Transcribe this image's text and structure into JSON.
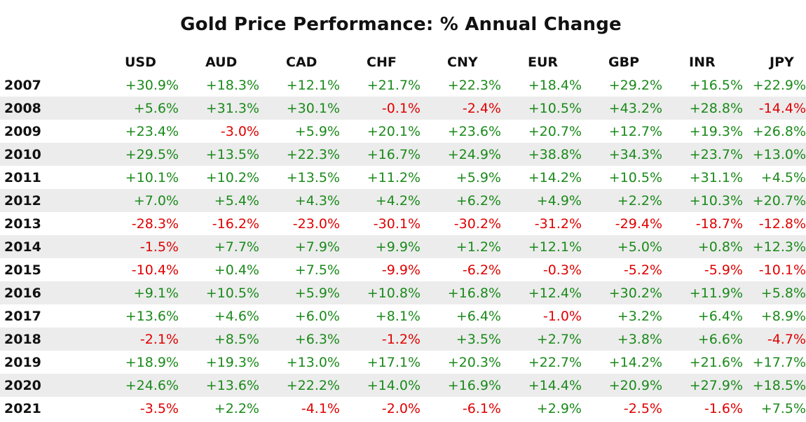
{
  "chart_data": {
    "type": "table",
    "title": "Gold Price Performance: % Annual Change",
    "columns": [
      "USD",
      "AUD",
      "CAD",
      "CHF",
      "CNY",
      "EUR",
      "GBP",
      "INR",
      "JPY"
    ],
    "colors": {
      "positive": "#1a8a1a",
      "negative": "#e00000",
      "shaded_row": "#ececec"
    },
    "rows": [
      {
        "year": "2007",
        "values": [
          "+30.9%",
          "+18.3%",
          "+12.1%",
          "+21.7%",
          "+22.3%",
          "+18.4%",
          "+29.2%",
          "+16.5%",
          "+22.9%"
        ]
      },
      {
        "year": "2008",
        "values": [
          "+5.6%",
          "+31.3%",
          "+30.1%",
          "-0.1%",
          "-2.4%",
          "+10.5%",
          "+43.2%",
          "+28.8%",
          "-14.4%"
        ]
      },
      {
        "year": "2009",
        "values": [
          "+23.4%",
          "-3.0%",
          "+5.9%",
          "+20.1%",
          "+23.6%",
          "+20.7%",
          "+12.7%",
          "+19.3%",
          "+26.8%"
        ]
      },
      {
        "year": "2010",
        "values": [
          "+29.5%",
          "+13.5%",
          "+22.3%",
          "+16.7%",
          "+24.9%",
          "+38.8%",
          "+34.3%",
          "+23.7%",
          "+13.0%"
        ]
      },
      {
        "year": "2011",
        "values": [
          "+10.1%",
          "+10.2%",
          "+13.5%",
          "+11.2%",
          "+5.9%",
          "+14.2%",
          "+10.5%",
          "+31.1%",
          "+4.5%"
        ]
      },
      {
        "year": "2012",
        "values": [
          "+7.0%",
          "+5.4%",
          "+4.3%",
          "+4.2%",
          "+6.2%",
          "+4.9%",
          "+2.2%",
          "+10.3%",
          "+20.7%"
        ]
      },
      {
        "year": "2013",
        "values": [
          "-28.3%",
          "-16.2%",
          "-23.0%",
          "-30.1%",
          "-30.2%",
          "-31.2%",
          "-29.4%",
          "-18.7%",
          "-12.8%"
        ]
      },
      {
        "year": "2014",
        "values": [
          "-1.5%",
          "+7.7%",
          "+7.9%",
          "+9.9%",
          "+1.2%",
          "+12.1%",
          "+5.0%",
          "+0.8%",
          "+12.3%"
        ]
      },
      {
        "year": "2015",
        "values": [
          "-10.4%",
          "+0.4%",
          "+7.5%",
          "-9.9%",
          "-6.2%",
          "-0.3%",
          "-5.2%",
          "-5.9%",
          "-10.1%"
        ]
      },
      {
        "year": "2016",
        "values": [
          "+9.1%",
          "+10.5%",
          "+5.9%",
          "+10.8%",
          "+16.8%",
          "+12.4%",
          "+30.2%",
          "+11.9%",
          "+5.8%"
        ]
      },
      {
        "year": "2017",
        "values": [
          "+13.6%",
          "+4.6%",
          "+6.0%",
          "+8.1%",
          "+6.4%",
          "-1.0%",
          "+3.2%",
          "+6.4%",
          "+8.9%"
        ]
      },
      {
        "year": "2018",
        "values": [
          "-2.1%",
          "+8.5%",
          "+6.3%",
          "-1.2%",
          "+3.5%",
          "+2.7%",
          "+3.8%",
          "+6.6%",
          "-4.7%"
        ]
      },
      {
        "year": "2019",
        "values": [
          "+18.9%",
          "+19.3%",
          "+13.0%",
          "+17.1%",
          "+20.3%",
          "+22.7%",
          "+14.2%",
          "+21.6%",
          "+17.7%"
        ]
      },
      {
        "year": "2020",
        "values": [
          "+24.6%",
          "+13.6%",
          "+22.2%",
          "+14.0%",
          "+16.9%",
          "+14.4%",
          "+20.9%",
          "+27.9%",
          "+18.5%"
        ]
      },
      {
        "year": "2021",
        "values": [
          "-3.5%",
          "+2.2%",
          "-4.1%",
          "-2.0%",
          "-6.1%",
          "+2.9%",
          "-2.5%",
          "-1.6%",
          "+7.5%"
        ]
      }
    ]
  }
}
